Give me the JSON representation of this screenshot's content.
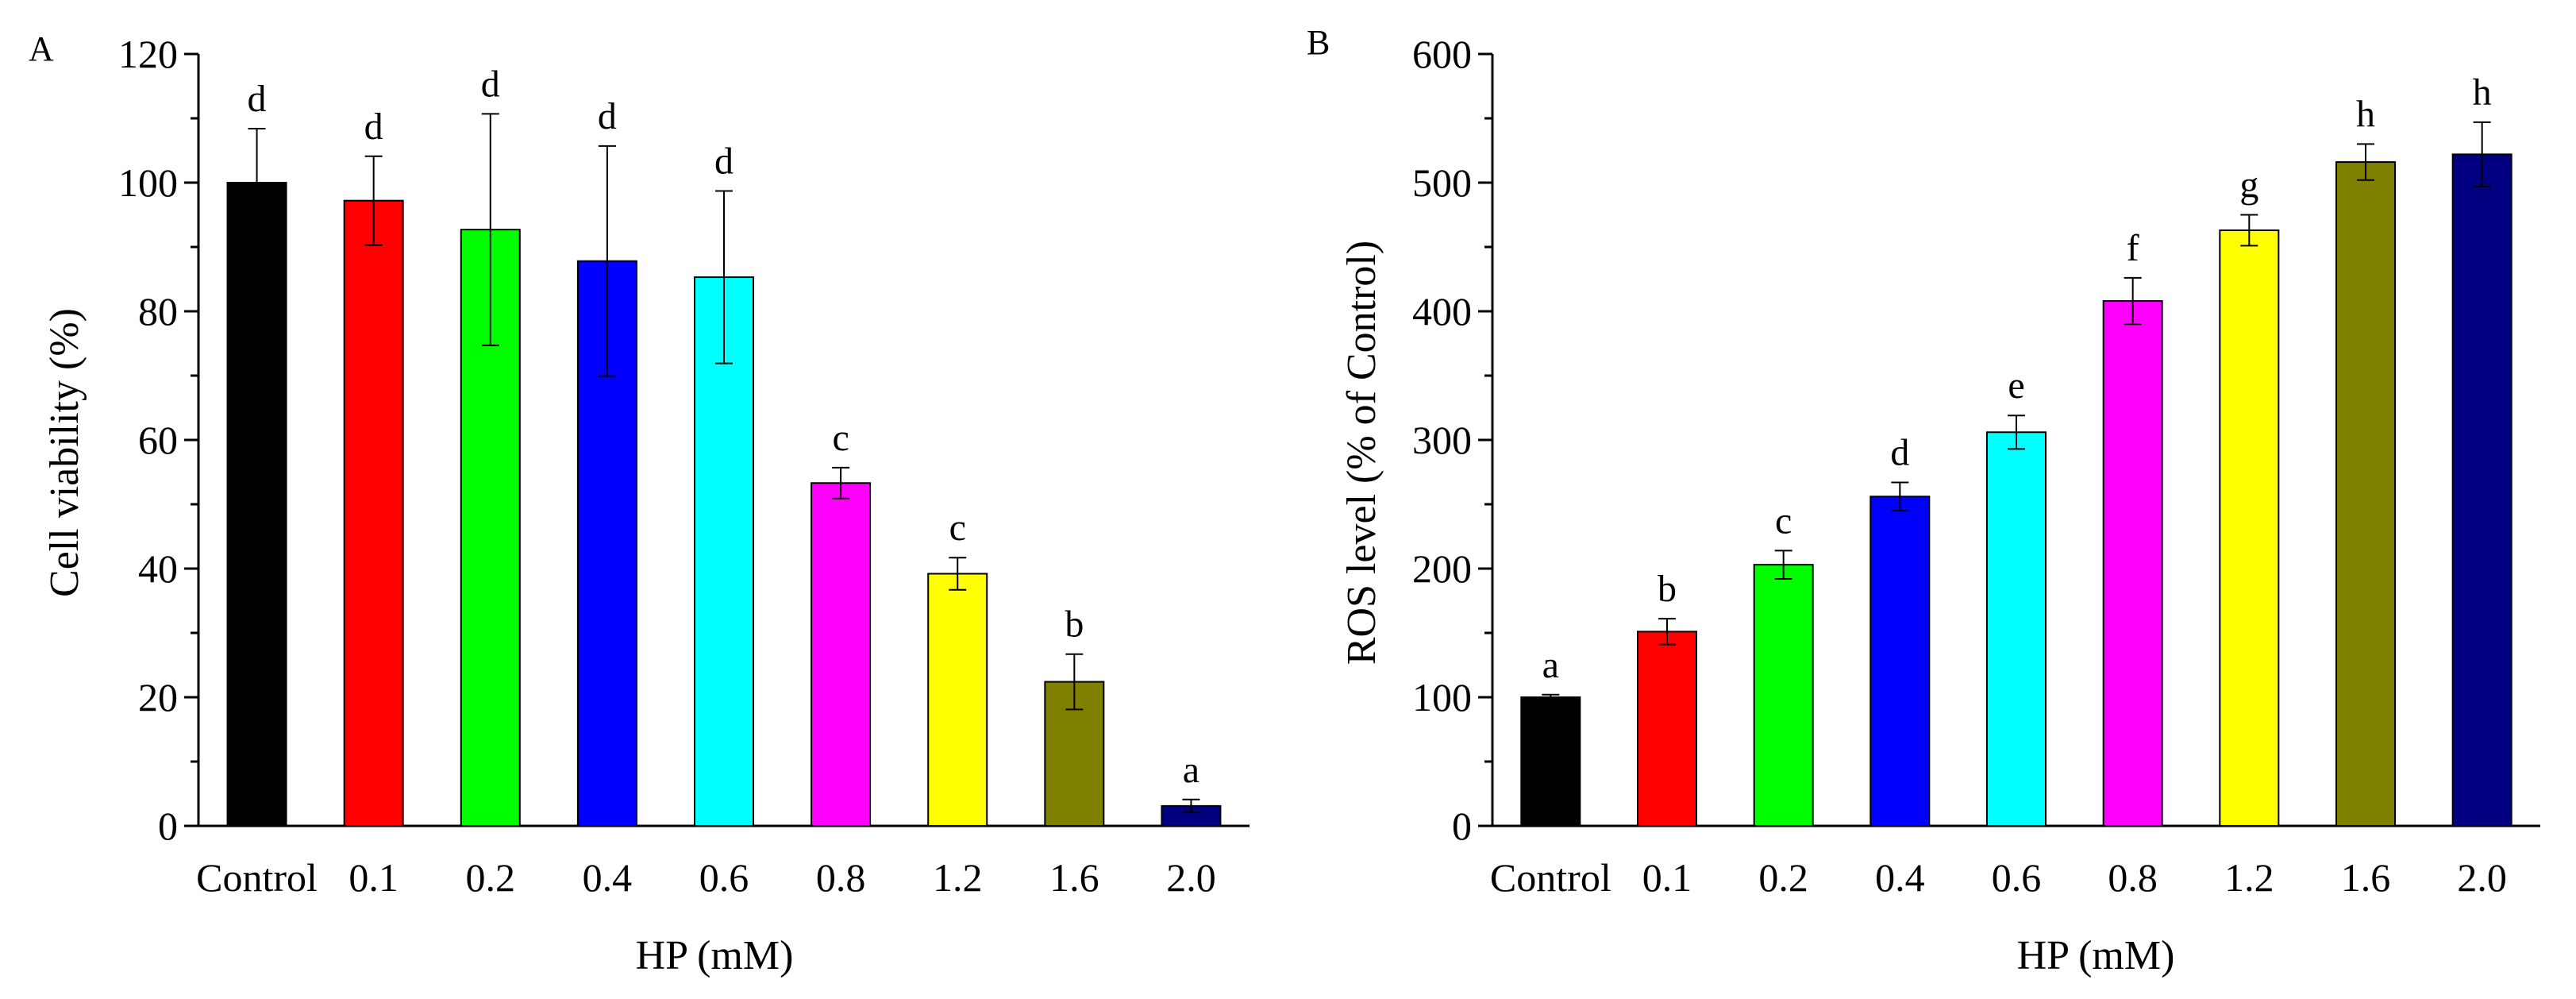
{
  "colors": {
    "bars": [
      "#000000",
      "#ff0000",
      "#00ff00",
      "#0000ff",
      "#00ffff",
      "#ff00ff",
      "#ffff00",
      "#808000",
      "#000080"
    ]
  },
  "chart_data": [
    {
      "type": "bar",
      "panel_label": "A",
      "title": "",
      "xlabel": "HP (mM)",
      "ylabel": "Cell viability (%)",
      "categories": [
        "Control",
        "0.1",
        "0.2",
        "0.4",
        "0.6",
        "0.8",
        "1.2",
        "1.6",
        "2.0"
      ],
      "values": [
        100,
        97.2,
        92.7,
        87.8,
        85.3,
        53.3,
        39.2,
        22.4,
        3.1
      ],
      "errors": [
        8.4,
        6.9,
        18.0,
        17.9,
        13.4,
        2.4,
        2.5,
        4.3,
        1.0
      ],
      "sig_labels": [
        "d",
        "d",
        "d",
        "d",
        "d",
        "c",
        "c",
        "b",
        "a"
      ],
      "ylim": [
        0,
        120
      ],
      "yticks": [
        "0",
        "20",
        "40",
        "60",
        "80",
        "100",
        "120"
      ],
      "grid": false
    },
    {
      "type": "bar",
      "panel_label": "B",
      "title": "",
      "xlabel": "HP (mM)",
      "ylabel": "ROS level (% of Control)",
      "categories": [
        "Control",
        "0.1",
        "0.2",
        "0.4",
        "0.6",
        "0.8",
        "1.2",
        "1.6",
        "2.0"
      ],
      "values": [
        100,
        151,
        203,
        256,
        306,
        408,
        463,
        516,
        522
      ],
      "errors": [
        2,
        10,
        11,
        11,
        13,
        18,
        12,
        14,
        25
      ],
      "sig_labels": [
        "a",
        "b",
        "c",
        "d",
        "e",
        "f",
        "g",
        "h",
        "h"
      ],
      "ylim": [
        0,
        600
      ],
      "yticks": [
        "0",
        "100",
        "200",
        "300",
        "400",
        "500",
        "600"
      ],
      "grid": false
    }
  ]
}
